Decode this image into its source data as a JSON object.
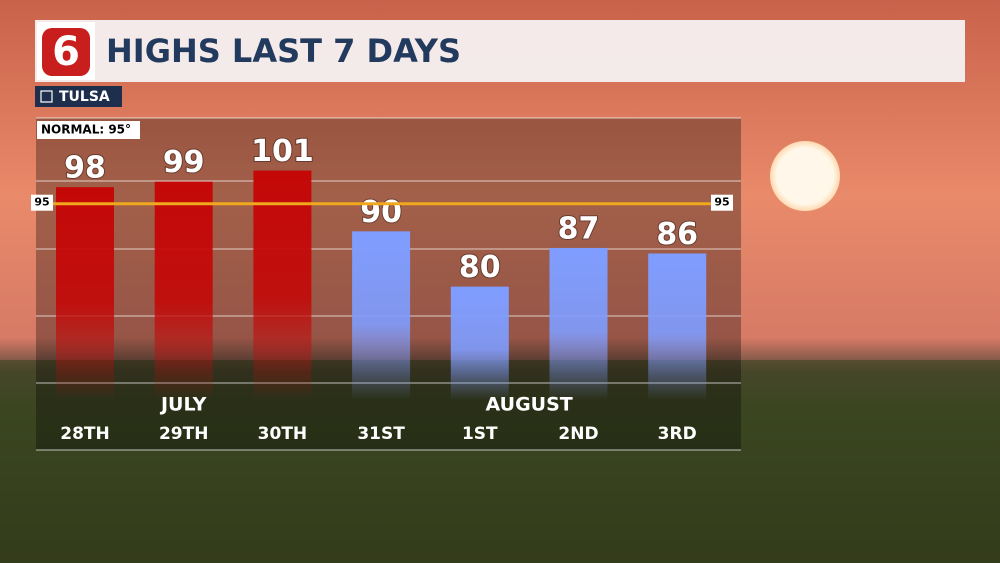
{
  "chart_data": {
    "type": "bar",
    "title": "HIGHS LAST 7 DAYS",
    "logo": "6",
    "location": "TULSA",
    "normal_label": "NORMAL: 95°",
    "normal": 95,
    "month_labels": [
      "JULY",
      "AUGUST"
    ],
    "categories": [
      "28TH",
      "29TH",
      "30TH",
      "31ST",
      "1ST",
      "2ND",
      "3RD"
    ],
    "values": [
      98,
      99,
      101,
      90,
      80,
      87,
      86
    ],
    "colors": [
      "#c40808",
      "#c40808",
      "#c40808",
      "#7f9dff",
      "#7f9dff",
      "#7f9dff",
      "#7f9dff"
    ],
    "normal_color": "#f0a81c",
    "ylim": [
      59.5,
      110.5
    ]
  }
}
